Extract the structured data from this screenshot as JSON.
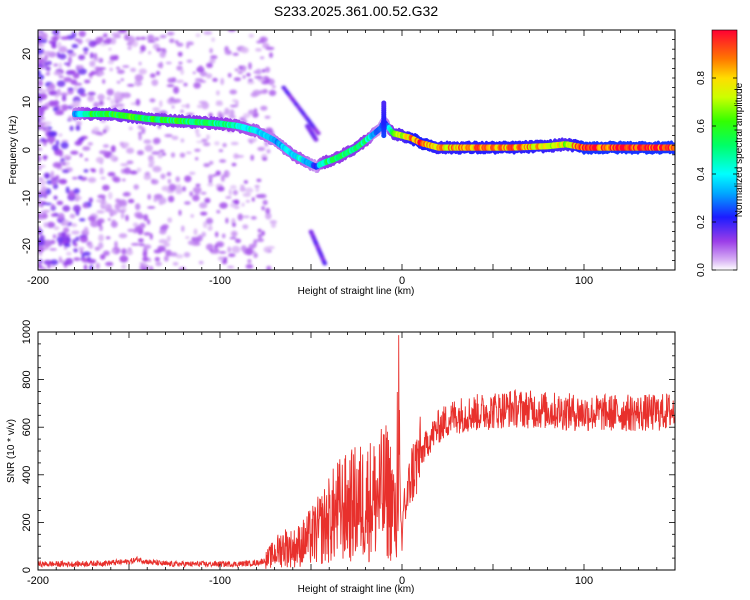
{
  "figure": {
    "title": "S233.2025.361.00.52.G32"
  },
  "chart_data": [
    {
      "type": "heatmap",
      "name": "spectrogram",
      "xlabel": "Height of straight line (km)",
      "ylabel": "Frequency (Hz)",
      "xlim": [
        -200,
        150
      ],
      "ylim": [
        -25,
        25
      ],
      "xticks": [
        -200,
        -100,
        0,
        100
      ],
      "yticks": [
        -20,
        -10,
        0,
        10,
        20
      ],
      "colorbar": {
        "label": "Normalized spectral amplitude",
        "range": [
          0.0,
          1.0
        ],
        "ticks": [
          0.0,
          0.2,
          0.4,
          0.6,
          0.8
        ]
      },
      "ridge": {
        "x": [
          -200,
          -180,
          -170,
          -160,
          -150,
          -140,
          -120,
          -100,
          -90,
          -80,
          -75,
          -70,
          -65,
          -60,
          -55,
          -50,
          -47,
          -45,
          -42,
          -38,
          -35,
          -30,
          -25,
          -20,
          -15,
          -12,
          -10,
          -8,
          -5,
          0,
          5,
          10,
          15,
          20,
          40,
          60,
          80,
          90,
          100,
          120,
          150
        ],
        "y": [
          7,
          7.5,
          7.5,
          7.5,
          7,
          6.5,
          6,
          5.5,
          5,
          4,
          3,
          2,
          0.5,
          -1,
          -2,
          -3,
          -3.5,
          -3,
          -2.5,
          -2,
          -1.5,
          -0.5,
          0.5,
          2,
          3.5,
          4.5,
          6,
          5,
          3.5,
          3,
          2.5,
          1.5,
          1,
          0.5,
          0.5,
          0.5,
          0.8,
          1.2,
          0.5,
          0.5,
          0.5
        ],
        "a": [
          0.15,
          0.3,
          0.55,
          0.55,
          0.6,
          0.55,
          0.55,
          0.5,
          0.45,
          0.4,
          0.35,
          0.3,
          0.35,
          0.4,
          0.4,
          0.3,
          0.2,
          0.4,
          0.5,
          0.5,
          0.5,
          0.5,
          0.55,
          0.5,
          0.3,
          0.25,
          0.2,
          0.3,
          0.6,
          0.7,
          0.85,
          0.9,
          0.85,
          0.8,
          0.85,
          0.85,
          0.8,
          0.7,
          0.95,
          0.95,
          0.95
        ]
      }
    },
    {
      "type": "line",
      "name": "snr",
      "xlabel": "Height of straight line (km)",
      "ylabel": "SNR (10 * v/v)",
      "xlim": [
        -200,
        150
      ],
      "ylim": [
        0,
        1000
      ],
      "xticks": [
        -200,
        -100,
        0,
        100
      ],
      "yticks": [
        0,
        200,
        400,
        600,
        800,
        1000
      ],
      "color": "#e8302c",
      "series": [
        {
          "name": "SNR",
          "x": [
            -200,
            -180,
            -160,
            -150,
            -145,
            -140,
            -130,
            -120,
            -110,
            -100,
            -90,
            -80,
            -75,
            -70,
            -65,
            -60,
            -55,
            -50,
            -45,
            -40,
            -35,
            -30,
            -25,
            -20,
            -15,
            -10,
            -8,
            -5,
            -3,
            -2,
            -1,
            0,
            1,
            2,
            5,
            10,
            15,
            20,
            25,
            30,
            40,
            50,
            60,
            80,
            100,
            120,
            140,
            150
          ],
          "y": [
            25,
            25,
            30,
            35,
            45,
            35,
            25,
            25,
            25,
            25,
            25,
            30,
            40,
            70,
            100,
            90,
            110,
            140,
            170,
            210,
            250,
            260,
            280,
            290,
            300,
            320,
            330,
            280,
            150,
            950,
            260,
            80,
            320,
            260,
            400,
            480,
            550,
            600,
            630,
            650,
            660,
            670,
            680,
            670,
            660,
            660,
            660,
            670
          ]
        }
      ]
    }
  ]
}
